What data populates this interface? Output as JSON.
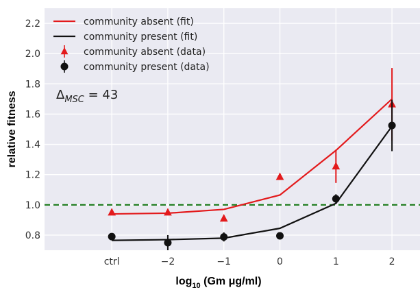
{
  "chart_data": {
    "type": "line",
    "xlabel": "log10 (Gm μg/ml)",
    "ylabel": "relative fitness",
    "xlim": [
      -4.2,
      2.5
    ],
    "ylim": [
      0.7,
      2.3
    ],
    "grid": true,
    "legend_position": "top-left",
    "x_ticks": [
      {
        "value": -3,
        "label": "ctrl"
      },
      {
        "value": -2,
        "label": "−2"
      },
      {
        "value": -1,
        "label": "−1"
      },
      {
        "value": 0,
        "label": "0"
      },
      {
        "value": 1,
        "label": "1"
      },
      {
        "value": 2,
        "label": "2"
      }
    ],
    "y_ticks": [
      0.8,
      1.0,
      1.2,
      1.4,
      1.6,
      1.8,
      2.0,
      2.2
    ],
    "y_tick_labels": [
      "0.8",
      "1.0",
      "1.2",
      "1.4",
      "1.6",
      "1.8",
      "2.0",
      "2.2"
    ],
    "reference_line": {
      "y": 1.0,
      "color": "#1a7a1a",
      "style": "dashed"
    },
    "annotation": {
      "symbol": "Δ",
      "subscript": "MSC",
      "text": " = 43"
    },
    "series": [
      {
        "name": "community absent (fit)",
        "kind": "line",
        "color": "#e31a1c",
        "x": [
          -3,
          -2,
          -1,
          0,
          1,
          2
        ],
        "y": [
          0.94,
          0.945,
          0.97,
          1.065,
          1.36,
          1.7
        ]
      },
      {
        "name": "community present (fit)",
        "kind": "line",
        "color": "#111111",
        "x": [
          -3,
          -2,
          -1,
          0,
          1,
          2
        ],
        "y": [
          0.765,
          0.77,
          0.78,
          0.845,
          1.01,
          1.52
        ]
      },
      {
        "name": "community absent (data)",
        "kind": "points",
        "marker": "triangle",
        "color": "#e31a1c",
        "x": [
          -3,
          -2,
          -1,
          0,
          1,
          2
        ],
        "y": [
          0.95,
          0.95,
          0.91,
          1.185,
          1.255,
          1.665
        ],
        "err": [
          0,
          0,
          0,
          0,
          0.11,
          0.24
        ]
      },
      {
        "name": "community present (data)",
        "kind": "points",
        "marker": "circle",
        "color": "#111111",
        "x": [
          -3,
          -2,
          -1,
          0,
          1,
          2
        ],
        "y": [
          0.79,
          0.75,
          0.788,
          0.795,
          1.04,
          1.525
        ],
        "err": [
          0,
          0.05,
          0.03,
          0,
          0.03,
          0.17
        ]
      }
    ]
  }
}
